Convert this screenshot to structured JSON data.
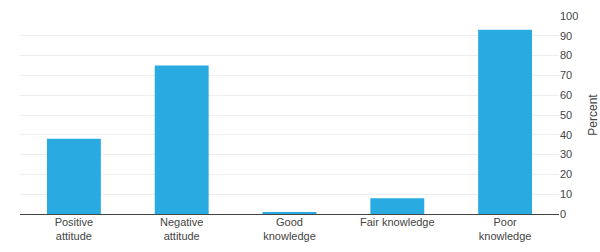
{
  "chart_data": {
    "type": "bar",
    "categories": [
      "Positive\nattitude",
      "Negative\nattitude",
      "Good\nknowledge",
      "Fair knowledge",
      "Poor\nknowledge"
    ],
    "values": [
      38,
      75,
      1,
      8,
      93
    ],
    "color": "#29ABE2",
    "ylabel": "Percent",
    "ylim": [
      0,
      100
    ],
    "yticks": [
      0,
      10,
      20,
      30,
      40,
      50,
      60,
      70,
      80,
      90,
      100
    ],
    "grid": true
  }
}
